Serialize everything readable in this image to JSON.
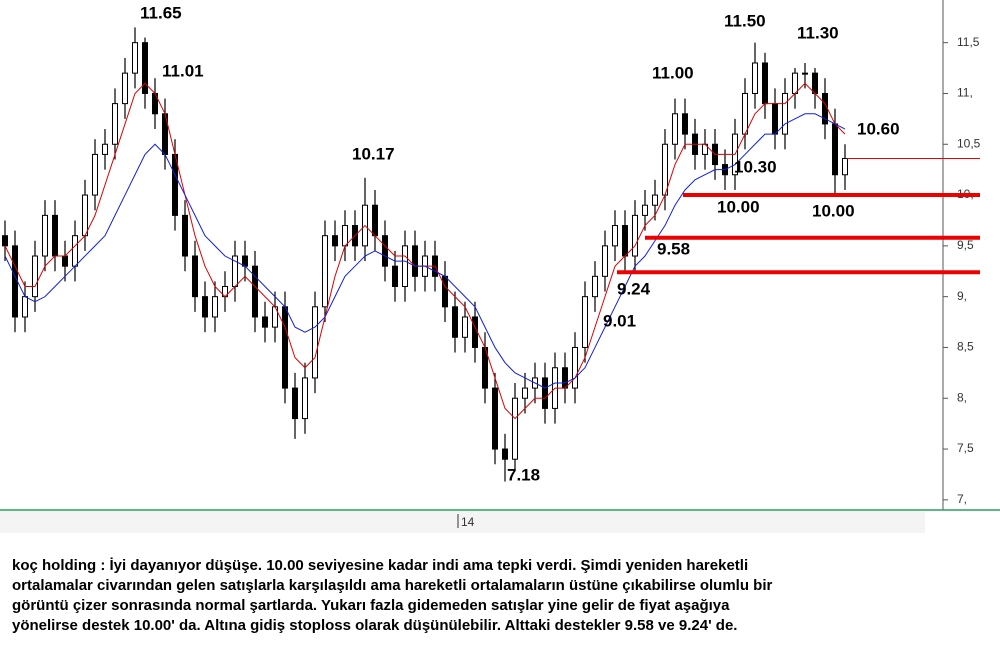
{
  "chart_data": {
    "type": "candlestick",
    "open": [
      9.6,
      9.5,
      8.8,
      9.0,
      9.4,
      9.8,
      9.4,
      9.3,
      9.6,
      10.0,
      10.4,
      10.5,
      10.9,
      11.2,
      11.5,
      11.0,
      10.8,
      10.4,
      9.8,
      9.4,
      9.0,
      8.8,
      9.0,
      9.1,
      9.4,
      9.3,
      8.8,
      8.7,
      8.9,
      8.1,
      7.8,
      8.2,
      8.9,
      9.6,
      9.5,
      9.7,
      9.5,
      9.9,
      9.6,
      9.3,
      9.1,
      9.5,
      9.2,
      9.4,
      9.2,
      8.9,
      8.6,
      8.8,
      8.5,
      8.1,
      7.5,
      7.4,
      8.0,
      8.1,
      8.2,
      7.9,
      8.3,
      8.1,
      8.5,
      9.0,
      9.2,
      9.5,
      9.7,
      9.4,
      9.8,
      9.9,
      10.0,
      10.5,
      10.8,
      10.6,
      10.4,
      10.5,
      10.3,
      10.2,
      10.6,
      11.0,
      11.3,
      10.9,
      10.6,
      11.0,
      11.2,
      11.2,
      11.0,
      10.7,
      10.2
    ],
    "high": [
      9.75,
      9.65,
      9.15,
      9.55,
      9.95,
      9.95,
      9.55,
      9.75,
      10.15,
      10.55,
      10.65,
      11.05,
      11.35,
      11.65,
      11.55,
      11.15,
      10.95,
      10.55,
      9.95,
      9.55,
      9.15,
      9.15,
      9.25,
      9.55,
      9.55,
      9.45,
      8.95,
      9.05,
      9.05,
      8.25,
      8.35,
      9.05,
      9.75,
      9.75,
      9.85,
      9.85,
      10.17,
      10.05,
      9.75,
      9.45,
      9.65,
      9.65,
      9.55,
      9.55,
      9.35,
      9.05,
      8.95,
      8.95,
      8.65,
      8.25,
      7.65,
      8.15,
      8.25,
      8.35,
      8.35,
      8.45,
      8.45,
      8.65,
      9.15,
      9.35,
      9.65,
      9.85,
      9.85,
      9.95,
      10.05,
      10.15,
      10.65,
      10.95,
      10.95,
      10.75,
      10.65,
      10.65,
      10.45,
      10.75,
      11.15,
      11.5,
      11.4,
      11.05,
      11.15,
      11.25,
      11.3,
      11.25,
      11.15,
      10.85,
      10.5
    ],
    "low": [
      9.35,
      8.65,
      8.65,
      8.85,
      9.25,
      9.25,
      9.15,
      9.15,
      9.45,
      9.85,
      10.25,
      10.35,
      10.75,
      11.05,
      10.85,
      10.65,
      10.25,
      9.65,
      9.25,
      8.85,
      8.65,
      8.65,
      8.85,
      8.95,
      9.15,
      8.65,
      8.55,
      8.55,
      7.95,
      7.6,
      7.65,
      8.05,
      8.75,
      9.35,
      9.35,
      9.35,
      9.35,
      9.45,
      9.15,
      8.95,
      8.95,
      9.05,
      9.05,
      9.05,
      8.75,
      8.45,
      8.45,
      8.35,
      7.95,
      7.35,
      7.18,
      7.3,
      7.85,
      7.95,
      7.75,
      7.75,
      7.95,
      7.95,
      8.35,
      8.85,
      9.05,
      9.35,
      9.25,
      9.25,
      9.65,
      9.75,
      9.85,
      10.35,
      10.45,
      10.25,
      10.25,
      10.15,
      10.05,
      10.05,
      10.45,
      10.85,
      10.75,
      10.45,
      10.45,
      10.85,
      11.05,
      10.85,
      10.55,
      10.0,
      10.05
    ],
    "close": [
      9.5,
      8.8,
      9.0,
      9.4,
      9.8,
      9.4,
      9.3,
      9.6,
      10.0,
      10.4,
      10.5,
      10.9,
      11.2,
      11.5,
      11.0,
      10.8,
      10.4,
      9.8,
      9.4,
      9.0,
      8.8,
      9.0,
      9.1,
      9.4,
      9.3,
      8.8,
      8.7,
      8.9,
      8.1,
      7.8,
      8.2,
      8.9,
      9.6,
      9.5,
      9.7,
      9.5,
      9.9,
      9.6,
      9.3,
      9.1,
      9.5,
      9.2,
      9.4,
      9.2,
      8.9,
      8.6,
      8.8,
      8.5,
      8.1,
      7.5,
      7.4,
      8.0,
      8.1,
      8.2,
      7.9,
      8.3,
      8.1,
      8.5,
      9.0,
      9.2,
      9.5,
      9.7,
      9.4,
      9.8,
      9.9,
      10.0,
      10.5,
      10.8,
      10.6,
      10.4,
      10.5,
      10.3,
      10.2,
      10.6,
      11.0,
      11.3,
      10.9,
      10.6,
      11.0,
      11.2,
      11.2,
      11.0,
      10.7,
      10.2,
      10.36
    ],
    "candle_color": "#000000",
    "series": [
      {
        "color": "#e00000",
        "values": [
          9.5,
          9.3,
          9.1,
          9.1,
          9.3,
          9.4,
          9.4,
          9.5,
          9.6,
          9.8,
          10.1,
          10.4,
          10.7,
          11.0,
          11.1,
          11.0,
          10.8,
          10.4,
          10.0,
          9.6,
          9.3,
          9.1,
          9.0,
          9.1,
          9.2,
          9.1,
          9.0,
          8.9,
          8.7,
          8.4,
          8.3,
          8.4,
          8.8,
          9.2,
          9.5,
          9.6,
          9.7,
          9.6,
          9.5,
          9.4,
          9.4,
          9.3,
          9.3,
          9.3,
          9.1,
          9.0,
          8.9,
          8.7,
          8.5,
          8.2,
          7.9,
          7.8,
          7.9,
          8.0,
          8.0,
          8.1,
          8.1,
          8.2,
          8.4,
          8.7,
          9.0,
          9.3,
          9.4,
          9.5,
          9.7,
          9.8,
          10.0,
          10.3,
          10.5,
          10.5,
          10.5,
          10.4,
          10.4,
          10.4,
          10.6,
          10.8,
          10.9,
          10.9,
          10.9,
          11.0,
          11.1,
          11.0,
          10.9,
          10.7,
          10.6
        ]
      },
      {
        "color": "#1020e0",
        "values": [
          9.4,
          9.2,
          9.0,
          8.95,
          9.0,
          9.1,
          9.2,
          9.3,
          9.4,
          9.5,
          9.6,
          9.8,
          10.0,
          10.2,
          10.4,
          10.5,
          10.4,
          10.2,
          10.0,
          9.8,
          9.6,
          9.5,
          9.4,
          9.35,
          9.3,
          9.2,
          9.1,
          9.0,
          8.9,
          8.7,
          8.65,
          8.7,
          8.8,
          9.0,
          9.2,
          9.3,
          9.4,
          9.45,
          9.4,
          9.35,
          9.35,
          9.3,
          9.3,
          9.25,
          9.2,
          9.1,
          9.0,
          8.9,
          8.7,
          8.5,
          8.35,
          8.25,
          8.2,
          8.15,
          8.1,
          8.15,
          8.15,
          8.2,
          8.3,
          8.5,
          8.7,
          8.9,
          9.1,
          9.3,
          9.4,
          9.55,
          9.7,
          9.9,
          10.05,
          10.15,
          10.2,
          10.25,
          10.25,
          10.3,
          10.4,
          10.5,
          10.6,
          10.6,
          10.7,
          10.75,
          10.8,
          10.8,
          10.75,
          10.7,
          10.65
        ]
      }
    ],
    "support_levels": [
      10.0,
      9.58,
      9.24
    ],
    "support_color": "#ee0000",
    "last_price_line": 10.36,
    "annotations": [
      "11.65",
      "11.01",
      "10.17",
      "7.18",
      "9.01",
      "9.24",
      "9.58",
      "10.00",
      "10.30",
      "11.00",
      "11.50",
      "11.30",
      "10.60",
      "10.00"
    ],
    "x_labels": [
      "14"
    ],
    "ylim": [
      6.9,
      11.92
    ],
    "yticks": [
      {
        "value": 7,
        "label": "7,"
      },
      {
        "value": 7.5,
        "label": "7,5"
      },
      {
        "value": 8,
        "label": "8,"
      },
      {
        "value": 8.5,
        "label": "8,5"
      },
      {
        "value": 9,
        "label": "9,"
      },
      {
        "value": 9.5,
        "label": "9,5"
      },
      {
        "value": 10,
        "label": "10,"
      },
      {
        "value": 10.5,
        "label": "10,5"
      },
      {
        "value": 11,
        "label": "11,"
      },
      {
        "value": 11.5,
        "label": "11,5"
      }
    ]
  },
  "caption": [
    "koç holding : İyi dayanıyor düşüşe. 10.00 seviyesine kadar indi ama tepki verdi. Şimdi yeniden hareketli",
    "ortalamalar civarından gelen satışlarla karşılaşıldı ama hareketli ortalamaların üstüne çıkabilirse olumlu bir",
    "görüntü çizer sonrasında normal şartlarda. Yukarı fazla gidemeden satışlar yine gelir de fiyat aşağıya",
    "yönelirse destek 10.00' da. Altına gidiş stoploss olarak düşünülebilir. Alttaki destekler 9.58 ve 9.24' de."
  ]
}
